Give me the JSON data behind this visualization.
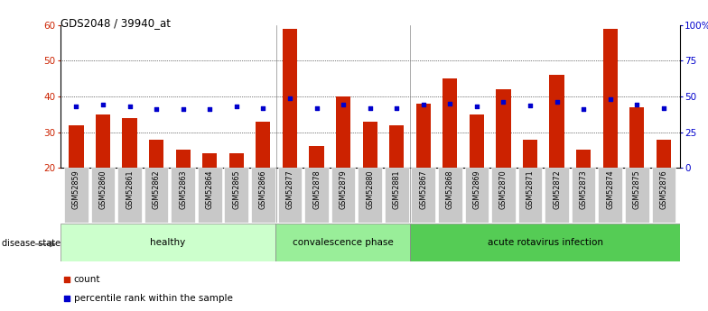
{
  "title": "GDS2048 / 39940_at",
  "samples": [
    "GSM52859",
    "GSM52860",
    "GSM52861",
    "GSM52862",
    "GSM52863",
    "GSM52864",
    "GSM52865",
    "GSM52866",
    "GSM52877",
    "GSM52878",
    "GSM52879",
    "GSM52880",
    "GSM52881",
    "GSM52867",
    "GSM52868",
    "GSM52869",
    "GSM52870",
    "GSM52871",
    "GSM52872",
    "GSM52873",
    "GSM52874",
    "GSM52875",
    "GSM52876"
  ],
  "count_values": [
    32,
    35,
    34,
    28,
    25,
    24,
    24,
    33,
    59,
    26,
    40,
    33,
    32,
    38,
    45,
    35,
    42,
    28,
    46,
    25,
    59,
    37,
    28
  ],
  "percentile_values": [
    43,
    44,
    43,
    41,
    41,
    41,
    43,
    42,
    48.5,
    41.5,
    44.5,
    42,
    42,
    44.5,
    45,
    43,
    46,
    43.5,
    46,
    41,
    48,
    44.5,
    42
  ],
  "groups": [
    {
      "label": "healthy",
      "start": 0,
      "end": 8
    },
    {
      "label": "convalescence phase",
      "start": 8,
      "end": 13
    },
    {
      "label": "acute rotavirus infection",
      "start": 13,
      "end": 23
    }
  ],
  "group_colors": [
    "#ccffcc",
    "#99ee99",
    "#55cc55"
  ],
  "bar_color": "#cc2200",
  "dot_color": "#0000cc",
  "ylim_left": [
    20,
    60
  ],
  "ylim_right": [
    0,
    100
  ],
  "yticks_left": [
    20,
    30,
    40,
    50,
    60
  ],
  "yticks_right": [
    0,
    25,
    50,
    75,
    100
  ],
  "right_tick_labels": [
    "0",
    "25",
    "50",
    "75",
    "100%"
  ],
  "grid_vals": [
    30,
    40,
    50
  ],
  "background_color": "#ffffff",
  "left_tick_color": "#cc2200",
  "right_tick_color": "#0000cc",
  "disease_state_label": "disease state",
  "legend_items": [
    {
      "label": "count",
      "color": "#cc2200"
    },
    {
      "label": "percentile rank within the sample",
      "color": "#0000cc"
    }
  ],
  "group_separators": [
    7.5,
    12.5
  ],
  "tick_bg_color": "#c8c8c8"
}
